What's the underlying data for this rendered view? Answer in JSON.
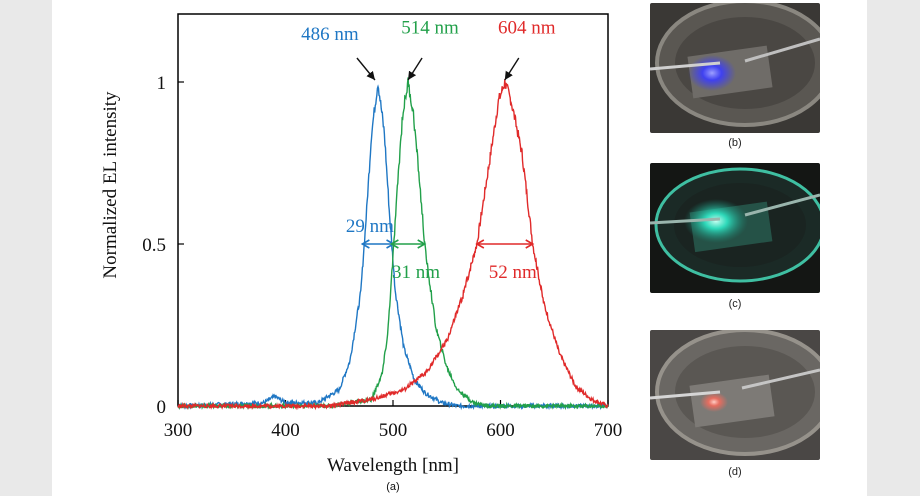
{
  "chart_data": {
    "type": "line",
    "xlabel": "Wavelength [nm]",
    "ylabel": "Normalized EL intensity",
    "xlim": [
      300,
      700
    ],
    "ylim": [
      0,
      1.2
    ],
    "xticks": [
      "300",
      "400",
      "500",
      "600",
      "700"
    ],
    "yticks": [
      "0",
      "0.5",
      "1"
    ],
    "grid": false,
    "series": [
      {
        "color": "#1f77c4",
        "peak_nm": 486,
        "fwhm_nm": 29,
        "points": [
          [
            300,
            0
          ],
          [
            380,
            0.01
          ],
          [
            390,
            0.03
          ],
          [
            400,
            0.01
          ],
          [
            430,
            0.01
          ],
          [
            450,
            0.05
          ],
          [
            460,
            0.14
          ],
          [
            470,
            0.35
          ],
          [
            475,
            0.58
          ],
          [
            480,
            0.84
          ],
          [
            486,
            1.0
          ],
          [
            492,
            0.84
          ],
          [
            497,
            0.58
          ],
          [
            502,
            0.36
          ],
          [
            510,
            0.18
          ],
          [
            520,
            0.08
          ],
          [
            530,
            0.04
          ],
          [
            545,
            0.01
          ],
          [
            560,
            0.0
          ],
          [
            700,
            0
          ]
        ]
      },
      {
        "color": "#22a04a",
        "peak_nm": 514,
        "fwhm_nm": 31,
        "points": [
          [
            300,
            0
          ],
          [
            440,
            0
          ],
          [
            480,
            0.02
          ],
          [
            490,
            0.1
          ],
          [
            495,
            0.22
          ],
          [
            500,
            0.46
          ],
          [
            505,
            0.72
          ],
          [
            509,
            0.9
          ],
          [
            514,
            1.0
          ],
          [
            519,
            0.9
          ],
          [
            524,
            0.72
          ],
          [
            530,
            0.48
          ],
          [
            540,
            0.24
          ],
          [
            550,
            0.12
          ],
          [
            560,
            0.05
          ],
          [
            575,
            0.01
          ],
          [
            590,
            0
          ],
          [
            700,
            0
          ]
        ]
      },
      {
        "color": "#e02a2a",
        "peak_nm": 604,
        "fwhm_nm": 52,
        "points": [
          [
            300,
            0
          ],
          [
            440,
            0
          ],
          [
            480,
            0.02
          ],
          [
            510,
            0.05
          ],
          [
            530,
            0.1
          ],
          [
            550,
            0.2
          ],
          [
            565,
            0.34
          ],
          [
            578,
            0.5
          ],
          [
            590,
            0.76
          ],
          [
            598,
            0.94
          ],
          [
            604,
            1.0
          ],
          [
            610,
            0.94
          ],
          [
            620,
            0.78
          ],
          [
            630,
            0.5
          ],
          [
            640,
            0.32
          ],
          [
            655,
            0.16
          ],
          [
            670,
            0.06
          ],
          [
            685,
            0.02
          ],
          [
            700,
            0
          ]
        ]
      }
    ],
    "annotations": [
      {
        "text": "486 nm",
        "color": "#1f77c4"
      },
      {
        "text": "514 nm",
        "color": "#22a04a"
      },
      {
        "text": "604 nm",
        "color": "#e02a2a"
      },
      {
        "text": "29 nm",
        "color": "#1f77c4"
      },
      {
        "text": "31 nm",
        "color": "#22a04a"
      },
      {
        "text": "52 nm",
        "color": "#e02a2a"
      }
    ],
    "panel_label": "(a)"
  },
  "photos": [
    {
      "caption": "(b)",
      "glow_color": "#3a3cff"
    },
    {
      "caption": "(c)",
      "glow_color": "#2fe0c0"
    },
    {
      "caption": "(d)",
      "glow_color": "#ff6a5a"
    }
  ]
}
